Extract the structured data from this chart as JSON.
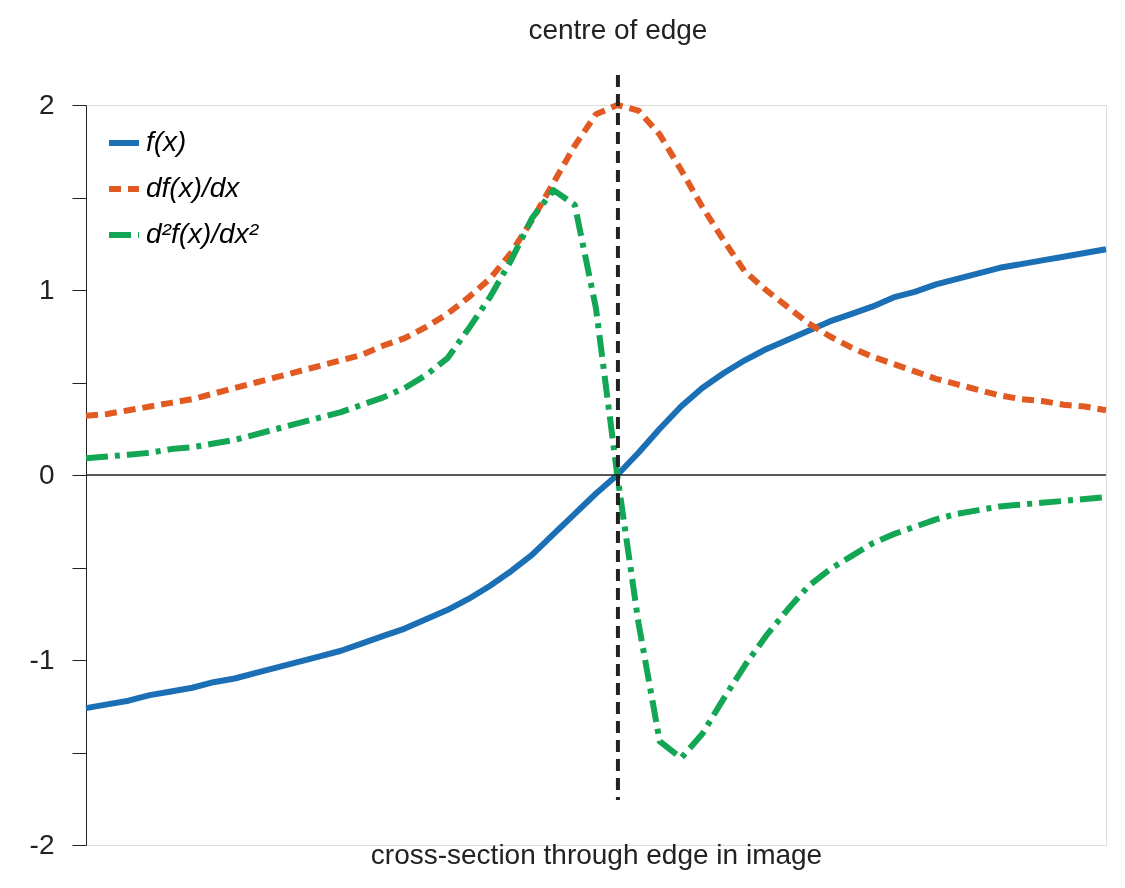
{
  "chart_data": {
    "type": "line",
    "xlabel": "cross-section through edge in image",
    "categories": [
      null,
      null,
      null,
      null,
      null,
      null,
      null,
      null,
      null,
      null,
      null,
      null,
      null,
      null,
      null,
      null,
      null,
      null,
      null,
      null,
      null,
      null,
      null,
      null,
      null,
      null,
      null,
      null,
      null,
      null,
      null,
      null,
      null,
      null,
      null,
      null,
      null,
      null,
      null,
      null,
      null,
      null,
      null,
      null,
      null,
      null,
      null,
      null,
      null
    ],
    "ylim": [
      -2,
      2
    ],
    "yticks": [
      -2,
      {
        "value": -1.5,
        "label": null
      },
      -1,
      {
        "value": -0.5,
        "label": null
      },
      0,
      {
        "value": 0.5,
        "label": null
      },
      1,
      {
        "value": 1.5,
        "label": null
      },
      2
    ],
    "tick_labels": "y",
    "grid": false,
    "legend": "top left",
    "series": [
      {
        "name": "f(x)",
        "color": "#1a6fb5",
        "line_style": "solid",
        "values": [
          -1.26,
          -1.24,
          -1.22,
          -1.19,
          -1.17,
          -1.15,
          -1.12,
          -1.1,
          -1.07,
          -1.04,
          -1.01,
          -0.98,
          -0.95,
          -0.91,
          -0.87,
          -0.83,
          -0.78,
          -0.73,
          -0.67,
          -0.6,
          -0.52,
          -0.43,
          -0.32,
          -0.21,
          -0.1,
          0,
          0.12,
          0.25,
          0.37,
          0.47,
          0.55,
          0.62,
          0.68,
          0.73,
          0.78,
          0.83,
          0.87,
          0.91,
          0.96,
          0.99,
          1.03,
          1.06,
          1.09,
          1.12,
          1.14,
          1.16,
          1.18,
          1.2,
          1.22
        ]
      },
      {
        "name": "df(x)/dx",
        "color": "#e05a22",
        "line_style": "dashed",
        "values": [
          0.32,
          0.33,
          0.35,
          0.37,
          0.39,
          0.41,
          0.44,
          0.47,
          0.5,
          0.53,
          0.56,
          0.59,
          0.62,
          0.65,
          0.7,
          0.74,
          0.8,
          0.87,
          0.96,
          1.06,
          1.2,
          1.38,
          1.58,
          1.78,
          1.95,
          2.0,
          1.97,
          1.84,
          1.65,
          1.45,
          1.27,
          1.1,
          1.0,
          0.91,
          0.82,
          0.75,
          0.69,
          0.64,
          0.6,
          0.56,
          0.52,
          0.49,
          0.46,
          0.43,
          0.41,
          0.4,
          0.38,
          0.37,
          0.35
        ]
      },
      {
        "name": "d²f(x)/dx²",
        "color": "#13a655",
        "line_style": "dashdot",
        "values": [
          0.09,
          0.1,
          0.11,
          0.12,
          0.14,
          0.15,
          0.17,
          0.19,
          0.22,
          0.25,
          0.28,
          0.31,
          0.34,
          0.38,
          0.42,
          0.47,
          0.54,
          0.63,
          0.79,
          0.96,
          1.16,
          1.39,
          1.54,
          1.46,
          0.9,
          0,
          -0.8,
          -1.44,
          -1.53,
          -1.4,
          -1.21,
          -1.03,
          -0.87,
          -0.73,
          -0.6,
          -0.51,
          -0.44,
          -0.37,
          -0.32,
          -0.28,
          -0.24,
          -0.21,
          -0.19,
          -0.17,
          -0.16,
          -0.15,
          -0.14,
          -0.13,
          -0.12
        ]
      }
    ],
    "annotations": [
      "centre of edge"
    ],
    "ref_lines": [
      {
        "axis": "y",
        "value": 0,
        "color": "#222222",
        "line_style": "solid"
      }
    ]
  }
}
